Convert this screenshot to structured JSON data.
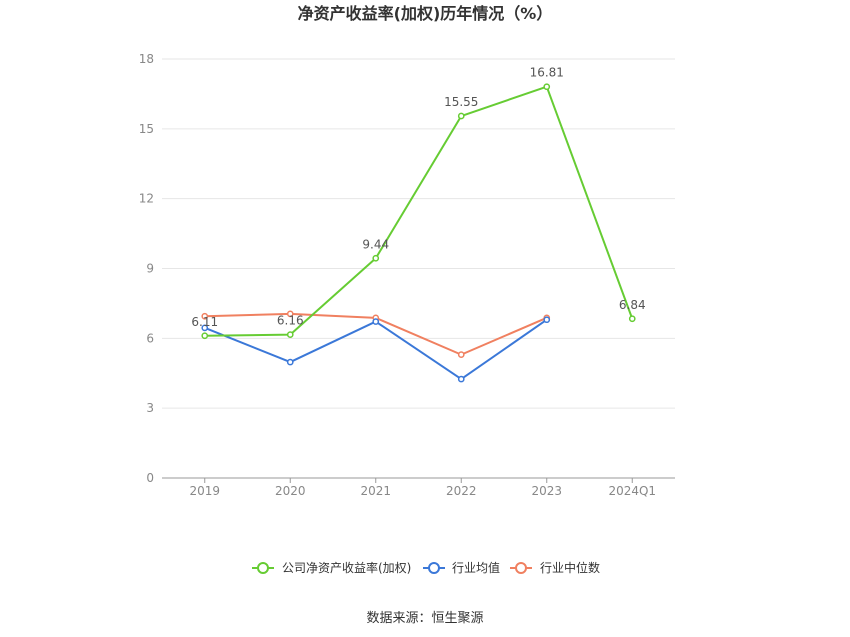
{
  "chart_data": {
    "type": "line",
    "title": "净资产收益率(加权)历年情况（%）",
    "categories": [
      "2019",
      "2020",
      "2021",
      "2022",
      "2023",
      "2024Q1"
    ],
    "ylim": [
      0,
      18
    ],
    "yticks": [
      0,
      3,
      6,
      9,
      12,
      15,
      18
    ],
    "grid": true,
    "legend_position": "bottom",
    "series": [
      {
        "name": "公司净资产收益率(加权)",
        "color": "#66cc33",
        "values": [
          6.11,
          6.16,
          9.44,
          15.55,
          16.81,
          6.84
        ],
        "labels": [
          "6.11",
          "6.16",
          "9.44",
          "15.55",
          "16.81",
          "6.84"
        ]
      },
      {
        "name": "行业均值",
        "color": "#3b78d8",
        "values": [
          6.45,
          4.98,
          6.72,
          4.25,
          6.8,
          null
        ]
      },
      {
        "name": "行业中位数",
        "color": "#f08060",
        "values": [
          6.95,
          7.05,
          6.88,
          5.3,
          6.88,
          null
        ]
      }
    ],
    "source": "数据来源：恒生聚源"
  }
}
